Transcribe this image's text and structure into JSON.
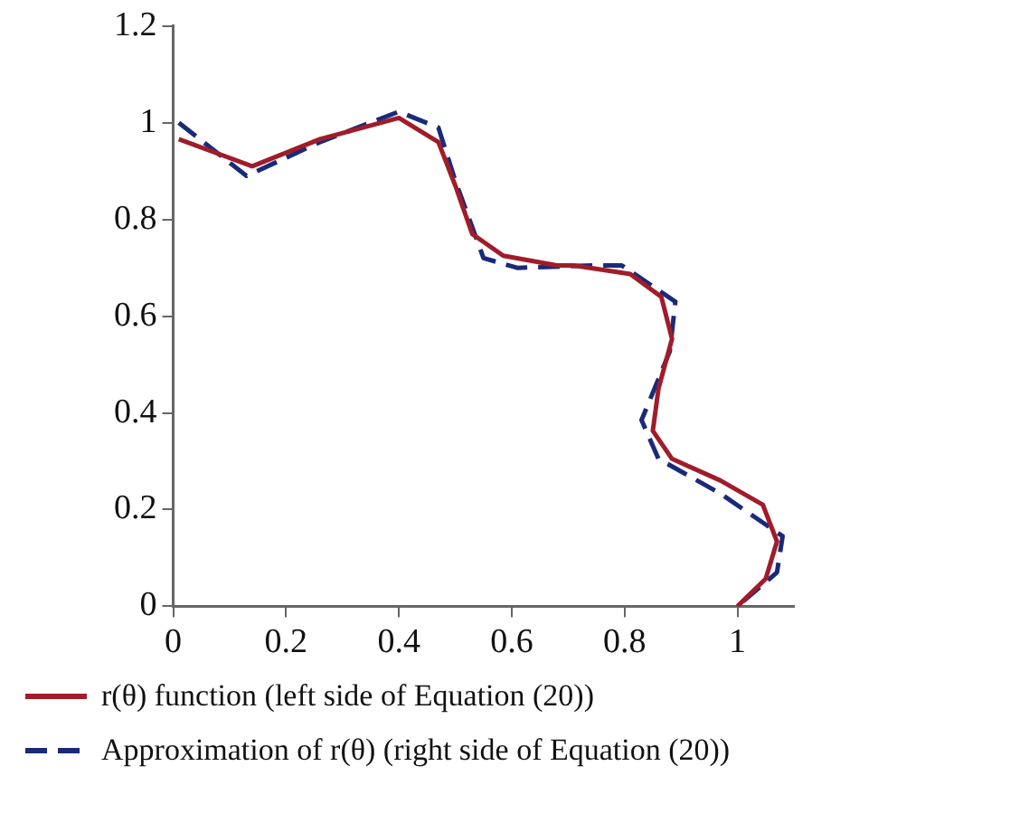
{
  "chart_data": {
    "type": "line",
    "xlim": [
      0,
      1.1
    ],
    "ylim": [
      0,
      1.2
    ],
    "xticks": [
      0,
      0.2,
      0.4,
      0.6,
      0.8,
      1
    ],
    "yticks": [
      0,
      0.2,
      0.4,
      0.6,
      0.8,
      1,
      1.2
    ],
    "grid": false,
    "legend": "bottom",
    "marker": "none",
    "series": [
      {
        "name": "r(θ)  function (left side of Equation (20))",
        "color": "#a01c2a",
        "line_style": "solid",
        "x": [
          0.01,
          0.14,
          0.26,
          0.4,
          0.47,
          0.5,
          0.53,
          0.585,
          0.68,
          0.71,
          0.81,
          0.865,
          0.884,
          0.86,
          0.85,
          0.884,
          0.97,
          1.045,
          1.07,
          1.05,
          1.0
        ],
        "values": [
          0.966,
          0.91,
          0.966,
          1.01,
          0.96,
          0.87,
          0.77,
          0.725,
          0.705,
          0.705,
          0.687,
          0.64,
          0.553,
          0.45,
          0.363,
          0.305,
          0.26,
          0.21,
          0.134,
          0.057,
          0
        ]
      },
      {
        "name": "Approximation of r(θ)  (right side of Equation (20))",
        "color": "#1a2a7a",
        "line_style": "dashed",
        "x": [
          0.01,
          0.13,
          0.26,
          0.4,
          0.47,
          0.5,
          0.55,
          0.61,
          0.75,
          0.795,
          0.89,
          0.88,
          0.83,
          0.86,
          0.97,
          1.08,
          1.07,
          1.0
        ],
        "values": [
          1.0,
          0.89,
          0.96,
          1.023,
          0.99,
          0.88,
          0.72,
          0.7,
          0.705,
          0.705,
          0.63,
          0.527,
          0.385,
          0.305,
          0.233,
          0.145,
          0.07,
          0
        ]
      }
    ]
  }
}
